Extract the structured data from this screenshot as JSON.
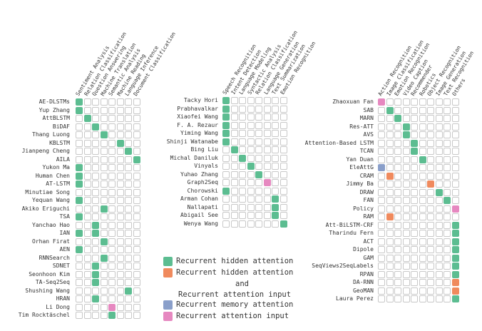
{
  "colors": {
    "hidden": "#5cbd91",
    "hidden_input": "#f08a5d",
    "memory": "#8a9fca",
    "input": "#e688c0"
  },
  "legend": {
    "hidden": "Recurrent hidden attention",
    "hidden_input_line1": "Recurrent hidden attention",
    "hidden_input_line2": "and",
    "hidden_input_line3": "Recurrent attention input",
    "memory": "Recurrent memory attention",
    "input": "Recurrent attention input"
  },
  "panels": [
    {
      "columns": [
        "Sentiment Analysis",
        "Relation Classification",
        "Question Answering",
        "Machine Translation",
        "Semantic Analysis",
        "Machine Reading",
        "Language Inference",
        "Document Classification"
      ],
      "rows": [
        {
          "label": "AE-DLSTMs",
          "col": 0,
          "type": "hidden"
        },
        {
          "label": "Yup Zhang",
          "col": 0,
          "type": "hidden"
        },
        {
          "label": "AttBLSTM",
          "col": 1,
          "type": "hidden"
        },
        {
          "label": "BiDAF",
          "col": 2,
          "type": "hidden"
        },
        {
          "label": "Thang Luong",
          "col": 3,
          "type": "hidden"
        },
        {
          "label": "KBLSTM",
          "col": 5,
          "type": "hidden"
        },
        {
          "label": "Jianpeng Cheng",
          "col": 6,
          "type": "hidden"
        },
        {
          "label": "AILA",
          "col": 7,
          "type": "hidden"
        },
        {
          "label": "Yukon Ma",
          "col": 0,
          "type": "hidden"
        },
        {
          "label": "Human Chen",
          "col": 0,
          "type": "hidden"
        },
        {
          "label": "AT-LSTM",
          "col": 0,
          "type": "hidden"
        },
        {
          "label": "Minutiae Song",
          "col": null,
          "type": null
        },
        {
          "label": "Yequan Wang",
          "col": 0,
          "type": "hidden"
        },
        {
          "label": "Akiko Eriguchi",
          "col": 3,
          "type": "hidden"
        },
        {
          "label": "TSA",
          "col": 0,
          "type": "hidden"
        },
        {
          "label": "Yanchao Hao",
          "col": 2,
          "type": "hidden"
        },
        {
          "label": "IAN",
          "col": 0,
          "col2": 2,
          "type": "hidden"
        },
        {
          "label": "Orhan Firat",
          "col": 3,
          "type": "hidden"
        },
        {
          "label": "AEN",
          "col": 0,
          "type": "hidden"
        },
        {
          "label": "RNNSearch",
          "col": 3,
          "type": "hidden"
        },
        {
          "label": "SDNET",
          "col": 2,
          "type": "hidden"
        },
        {
          "label": "Seonhoon Kim",
          "col": 2,
          "type": "hidden"
        },
        {
          "label": "TA-Seq2Seq",
          "col": 2,
          "type": "hidden"
        },
        {
          "label": "Shushing Wang",
          "col": 6,
          "type": "hidden"
        },
        {
          "label": "HRAN",
          "col": 2,
          "type": "hidden"
        },
        {
          "label": "Li Dong",
          "col": 4,
          "type": "input"
        },
        {
          "label": "Tim Rocktäschel",
          "col": 4,
          "type": "hidden"
        }
      ]
    },
    {
      "columns": [
        "Speech Recognition",
        "Intent Detection",
        "Language Modeling",
        "Syntactic Analysis",
        "Relation Classification",
        "Language Generation",
        "Text Summarization",
        "Emotion Recognition"
      ],
      "rows": [
        {
          "label": "Tacky Hori",
          "col": 0,
          "type": "hidden"
        },
        {
          "label": "Prabhavalkar",
          "col": 0,
          "type": "hidden"
        },
        {
          "label": "Xiaofei Wang",
          "col": 0,
          "type": "hidden"
        },
        {
          "label": "F. A. Rezaur",
          "col": 0,
          "type": "hidden"
        },
        {
          "label": "Yiming Wang",
          "col": 0,
          "type": "hidden"
        },
        {
          "label": "Shinji Watanabe",
          "col": 0,
          "type": "hidden"
        },
        {
          "label": "Bing Liu",
          "col": 1,
          "type": "hidden"
        },
        {
          "label": "Michal Daniluk",
          "col": 2,
          "type": "hidden"
        },
        {
          "label": "Vinyals",
          "col": 3,
          "type": "hidden"
        },
        {
          "label": "Yuhao Zhang",
          "col": 4,
          "type": "hidden"
        },
        {
          "label": "Graph2Seq",
          "col": 5,
          "type": "input"
        },
        {
          "label": "Chorowski",
          "col": 0,
          "type": "hidden"
        },
        {
          "label": "Arman Cohan",
          "col": 6,
          "type": "hidden"
        },
        {
          "label": "Nallapati",
          "col": 6,
          "type": "hidden"
        },
        {
          "label": "Abigail See",
          "col": 6,
          "type": "hidden"
        },
        {
          "label": "Wenya Wang",
          "col": 7,
          "type": "hidden"
        }
      ]
    },
    {
      "columns": [
        "Action Recognition",
        "Image Classification",
        "Emotion Recognition",
        "Video Caption",
        "Recommender",
        "Robotics",
        "Object Recognition",
        "Image Generation",
        "Text Recognition",
        "Others"
      ],
      "rows": [
        {
          "label": "Zhaoxuan Fan",
          "col": 0,
          "type": "input"
        },
        {
          "label": "SAB",
          "col": 1,
          "type": "hidden"
        },
        {
          "label": "MARN",
          "col": 2,
          "type": "hidden"
        },
        {
          "label": "Res-ATT",
          "col": 3,
          "type": "hidden"
        },
        {
          "label": "AVS",
          "col": 3,
          "type": "hidden"
        },
        {
          "label": "Attention-Based LSTM",
          "col": 4,
          "type": "hidden"
        },
        {
          "label": "TCAN",
          "col": 4,
          "type": "hidden"
        },
        {
          "label": "Yan Duan",
          "col": 5,
          "type": "hidden"
        },
        {
          "label": "EleAttG",
          "col": 0,
          "type": "memory"
        },
        {
          "label": "CRAM",
          "col": 1,
          "type": "hidden_input"
        },
        {
          "label": "Jimmy Ba",
          "col": 6,
          "type": "hidden_input"
        },
        {
          "label": "DRAW",
          "col": 7,
          "type": "hidden"
        },
        {
          "label": "FAN",
          "col": 8,
          "type": "hidden"
        },
        {
          "label": "Policy",
          "col": 9,
          "type": "input"
        },
        {
          "label": "RAM",
          "col": 1,
          "type": "hidden_input"
        },
        {
          "label": "Att-BiLSTM-CRF",
          "col": 9,
          "type": "hidden"
        },
        {
          "label": "Tharindu Fern",
          "col": 9,
          "type": "hidden"
        },
        {
          "label": "ACT",
          "col": 9,
          "type": "hidden"
        },
        {
          "label": "Dipole",
          "col": 9,
          "type": "hidden"
        },
        {
          "label": "GAM",
          "col": 9,
          "type": "hidden"
        },
        {
          "label": "SeqViews2SeqLabels",
          "col": 9,
          "type": "hidden"
        },
        {
          "label": "RPAN",
          "col": 9,
          "type": "hidden"
        },
        {
          "label": "DA-RNN",
          "col": 9,
          "type": "hidden_input"
        },
        {
          "label": "GeoMAN",
          "col": 9,
          "type": "hidden_input"
        },
        {
          "label": "Laura Perez",
          "col": 9,
          "type": "hidden"
        }
      ]
    }
  ]
}
